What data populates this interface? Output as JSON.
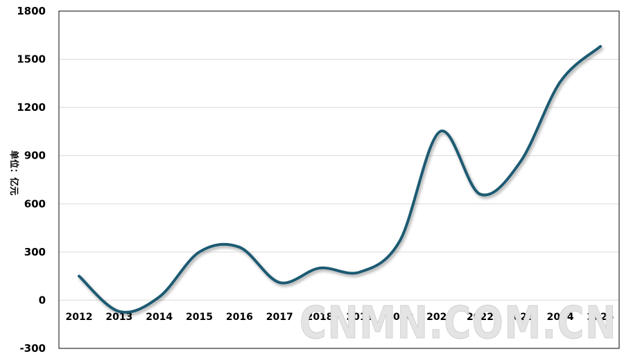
{
  "chart_data": {
    "type": "line",
    "title": "",
    "ylabel": "单位：亿元",
    "xlabel": "",
    "categories": [
      "2012",
      "2013",
      "2014",
      "2015",
      "2016",
      "2017",
      "2018",
      "2019",
      "2020",
      "2021",
      "2022",
      "2023",
      "2024",
      "2025"
    ],
    "values": [
      150,
      -70,
      20,
      300,
      330,
      110,
      200,
      175,
      370,
      1050,
      660,
      860,
      1360,
      1580
    ],
    "ylim": [
      -300,
      1800
    ],
    "yticks": [
      "-300",
      "0",
      "300",
      "600",
      "900",
      "1200",
      "1500",
      "1800"
    ],
    "grid": true,
    "legend": "none",
    "line_color": "#1f5a72",
    "watermark": "CNMN.COM.CN"
  }
}
